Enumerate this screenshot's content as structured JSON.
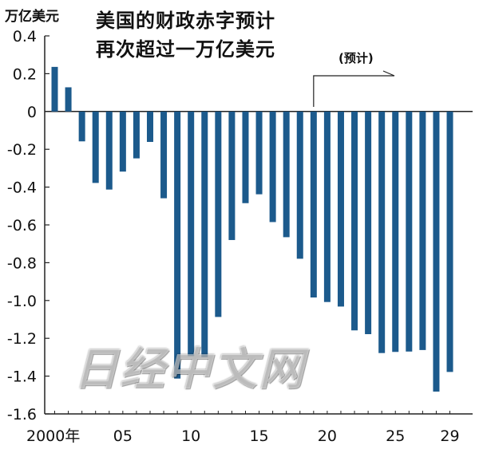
{
  "unit_label": "万亿美元",
  "title_lines": [
    "美国的财政赤字预计",
    "再次超过一万亿美元"
  ],
  "annotation": "(预计)",
  "watermark": "日经中文网",
  "colors": {
    "bar": "#1c5a8c",
    "axis": "#222222",
    "background": "#ffffff"
  },
  "chart_data": {
    "type": "bar",
    "title": "美国的财政赤字预计 再次超过一万亿美元",
    "ylabel": "万亿美元",
    "ylim": [
      -1.6,
      0.4
    ],
    "yticks": [
      "0.4",
      "0.2",
      "0",
      "-0.2",
      "-0.4",
      "-0.6",
      "-0.8",
      "-1.0",
      "-1.2",
      "-1.4",
      "-1.6"
    ],
    "ytick_values": [
      0.4,
      0.2,
      0,
      -0.2,
      -0.4,
      -0.6,
      -0.8,
      -1.0,
      -1.2,
      -1.4,
      -1.6
    ],
    "xtick_labels": [
      {
        "year": 2000,
        "label": "2000年"
      },
      {
        "year": 2005,
        "label": "05"
      },
      {
        "year": 2010,
        "label": "10"
      },
      {
        "year": 2015,
        "label": "15"
      },
      {
        "year": 2020,
        "label": "20"
      },
      {
        "year": 2025,
        "label": "25"
      },
      {
        "year": 2029,
        "label": "29"
      }
    ],
    "years": [
      2000,
      2001,
      2002,
      2003,
      2004,
      2005,
      2006,
      2007,
      2008,
      2009,
      2010,
      2011,
      2012,
      2013,
      2014,
      2015,
      2016,
      2017,
      2018,
      2019,
      2020,
      2021,
      2022,
      2023,
      2024,
      2025,
      2026,
      2027,
      2028,
      2029
    ],
    "values": [
      0.236,
      0.128,
      -0.158,
      -0.378,
      -0.413,
      -0.318,
      -0.248,
      -0.161,
      -0.459,
      -1.413,
      -1.294,
      -1.3,
      -1.087,
      -0.68,
      -0.485,
      -0.438,
      -0.585,
      -0.665,
      -0.779,
      -0.984,
      -1.008,
      -1.032,
      -1.158,
      -1.178,
      -1.278,
      -1.272,
      -1.27,
      -1.262,
      -1.482,
      -1.378
    ],
    "projection_start_year": 2019,
    "grid": false,
    "legend": "none"
  }
}
